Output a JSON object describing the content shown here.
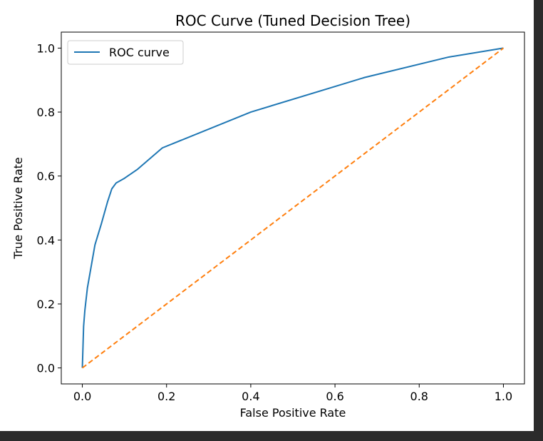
{
  "chart_data": {
    "type": "line",
    "title": "ROC Curve (Tuned Decision Tree)",
    "xlabel": "False Positive Rate",
    "ylabel": "True Positive Rate",
    "xlim": [
      -0.05,
      1.05
    ],
    "ylim": [
      -0.05,
      1.05
    ],
    "x_ticks": [
      0.0,
      0.2,
      0.4,
      0.6,
      0.8,
      1.0
    ],
    "y_ticks": [
      0.0,
      0.2,
      0.4,
      0.6,
      0.8,
      1.0
    ],
    "x_tick_labels": [
      "0.0",
      "0.2",
      "0.4",
      "0.6",
      "0.8",
      "1.0"
    ],
    "y_tick_labels": [
      "0.0",
      "0.2",
      "0.4",
      "0.6",
      "0.8",
      "1.0"
    ],
    "grid": false,
    "legend_position": "upper-left",
    "series": [
      {
        "name": "ROC curve",
        "color": "#1f77b4",
        "style": "solid",
        "x": [
          0.0,
          0.003,
          0.006,
          0.012,
          0.02,
          0.03,
          0.045,
          0.06,
          0.07,
          0.08,
          0.1,
          0.13,
          0.19,
          0.4,
          0.67,
          0.87,
          1.0
        ],
        "y": [
          0.0,
          0.13,
          0.18,
          0.25,
          0.31,
          0.385,
          0.45,
          0.52,
          0.56,
          0.578,
          0.593,
          0.62,
          0.688,
          0.8,
          0.908,
          0.972,
          1.0
        ]
      },
      {
        "color": "#ff7f0e",
        "style": "dashed",
        "x": [
          0.0,
          1.0
        ],
        "y": [
          0.0,
          1.0
        ]
      }
    ]
  }
}
